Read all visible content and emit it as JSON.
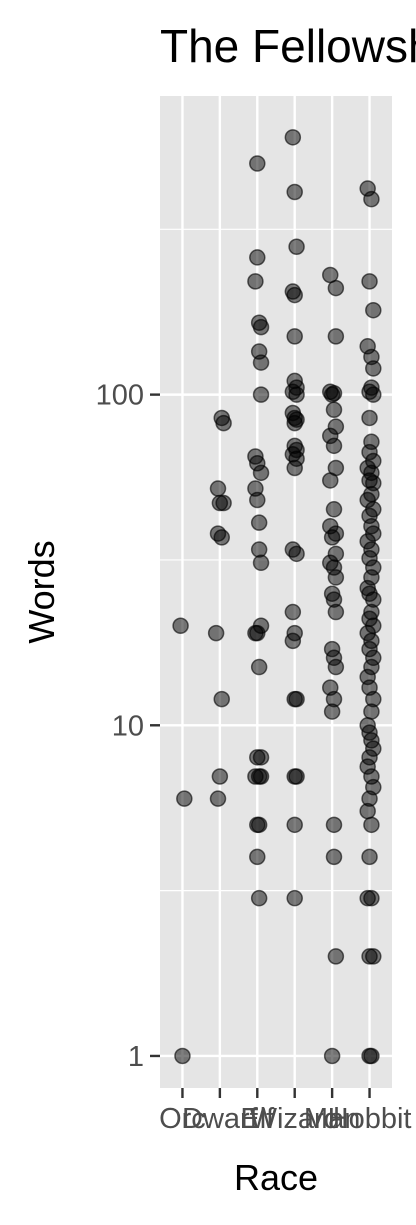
{
  "chart_data": {
    "type": "scatter",
    "title": "The Fellowship Of The Ring",
    "xlabel": "Race",
    "ylabel": "Words",
    "y_scale": "log10",
    "ylim": [
      0.8,
      800
    ],
    "y_ticks": [
      {
        "value": 1,
        "label": "1"
      },
      {
        "value": 10,
        "label": "10"
      },
      {
        "value": 100,
        "label": "100"
      }
    ],
    "categories": [
      "Orc",
      "Dwarf",
      "Elf",
      "Wizard",
      "Man",
      "Hobbit"
    ],
    "grid": true,
    "point_color": "#000000",
    "point_opacity": 0.5,
    "panel_color": "#e5e5e5",
    "series": [
      {
        "category": "Orc",
        "points": [
          {
            "x": -0.05,
            "y": 20
          },
          {
            "x": 0.05,
            "y": 6
          },
          {
            "x": 0.0,
            "y": 1
          }
        ]
      },
      {
        "category": "Dwarf",
        "points": [
          {
            "x": 0.05,
            "y": 85
          },
          {
            "x": 0.1,
            "y": 82
          },
          {
            "x": -0.05,
            "y": 52
          },
          {
            "x": 0.0,
            "y": 47
          },
          {
            "x": 0.1,
            "y": 47
          },
          {
            "x": -0.05,
            "y": 38
          },
          {
            "x": 0.05,
            "y": 37
          },
          {
            "x": -0.1,
            "y": 19
          },
          {
            "x": 0.05,
            "y": 12
          },
          {
            "x": 0.0,
            "y": 7
          },
          {
            "x": -0.05,
            "y": 6
          }
        ]
      },
      {
        "category": "Elf",
        "points": [
          {
            "x": 0.0,
            "y": 500
          },
          {
            "x": 0.0,
            "y": 260
          },
          {
            "x": -0.05,
            "y": 220
          },
          {
            "x": 0.05,
            "y": 165
          },
          {
            "x": 0.1,
            "y": 160
          },
          {
            "x": 0.05,
            "y": 135
          },
          {
            "x": 0.1,
            "y": 125
          },
          {
            "x": 0.1,
            "y": 100
          },
          {
            "x": -0.05,
            "y": 65
          },
          {
            "x": 0.0,
            "y": 62
          },
          {
            "x": 0.1,
            "y": 58
          },
          {
            "x": -0.05,
            "y": 52
          },
          {
            "x": 0.0,
            "y": 48
          },
          {
            "x": 0.05,
            "y": 41
          },
          {
            "x": 0.05,
            "y": 34
          },
          {
            "x": 0.1,
            "y": 31
          },
          {
            "x": 0.1,
            "y": 20
          },
          {
            "x": -0.05,
            "y": 19
          },
          {
            "x": 0.0,
            "y": 19
          },
          {
            "x": 0.05,
            "y": 15
          },
          {
            "x": 0.0,
            "y": 8
          },
          {
            "x": 0.1,
            "y": 8
          },
          {
            "x": -0.05,
            "y": 7
          },
          {
            "x": 0.05,
            "y": 7
          },
          {
            "x": 0.1,
            "y": 7
          },
          {
            "x": 0.0,
            "y": 5
          },
          {
            "x": 0.05,
            "y": 5
          },
          {
            "x": 0.0,
            "y": 4
          },
          {
            "x": 0.05,
            "y": 3
          }
        ]
      },
      {
        "category": "Wizard",
        "points": [
          {
            "x": -0.05,
            "y": 600
          },
          {
            "x": 0.0,
            "y": 410
          },
          {
            "x": 0.05,
            "y": 280
          },
          {
            "x": -0.05,
            "y": 205
          },
          {
            "x": 0.0,
            "y": 200
          },
          {
            "x": 0.0,
            "y": 150
          },
          {
            "x": 0.0,
            "y": 110
          },
          {
            "x": 0.05,
            "y": 105
          },
          {
            "x": -0.05,
            "y": 102
          },
          {
            "x": 0.05,
            "y": 100
          },
          {
            "x": -0.05,
            "y": 88
          },
          {
            "x": 0.0,
            "y": 85
          },
          {
            "x": 0.05,
            "y": 84
          },
          {
            "x": 0.0,
            "y": 82
          },
          {
            "x": 0.0,
            "y": 70
          },
          {
            "x": 0.05,
            "y": 68
          },
          {
            "x": -0.05,
            "y": 66
          },
          {
            "x": 0.05,
            "y": 64
          },
          {
            "x": 0.0,
            "y": 60
          },
          {
            "x": -0.05,
            "y": 34
          },
          {
            "x": 0.05,
            "y": 33
          },
          {
            "x": -0.05,
            "y": 22
          },
          {
            "x": 0.0,
            "y": 19
          },
          {
            "x": -0.05,
            "y": 18
          },
          {
            "x": 0.0,
            "y": 12
          },
          {
            "x": 0.05,
            "y": 12
          },
          {
            "x": 0.0,
            "y": 7
          },
          {
            "x": 0.05,
            "y": 7
          },
          {
            "x": 0.0,
            "y": 5
          },
          {
            "x": 0.0,
            "y": 3
          }
        ]
      },
      {
        "category": "Man",
        "points": [
          {
            "x": -0.05,
            "y": 230
          },
          {
            "x": 0.1,
            "y": 210
          },
          {
            "x": 0.1,
            "y": 150
          },
          {
            "x": -0.05,
            "y": 102
          },
          {
            "x": 0.05,
            "y": 101
          },
          {
            "x": 0.0,
            "y": 100
          },
          {
            "x": 0.05,
            "y": 90
          },
          {
            "x": 0.1,
            "y": 80
          },
          {
            "x": -0.05,
            "y": 75
          },
          {
            "x": 0.05,
            "y": 70
          },
          {
            "x": 0.1,
            "y": 60
          },
          {
            "x": -0.05,
            "y": 55
          },
          {
            "x": 0.05,
            "y": 45
          },
          {
            "x": -0.05,
            "y": 40
          },
          {
            "x": 0.1,
            "y": 38
          },
          {
            "x": 0.0,
            "y": 37
          },
          {
            "x": 0.1,
            "y": 33
          },
          {
            "x": -0.05,
            "y": 31
          },
          {
            "x": 0.05,
            "y": 30
          },
          {
            "x": 0.1,
            "y": 28
          },
          {
            "x": 0.0,
            "y": 25
          },
          {
            "x": 0.05,
            "y": 24
          },
          {
            "x": 0.1,
            "y": 22
          },
          {
            "x": 0.0,
            "y": 17
          },
          {
            "x": 0.05,
            "y": 16
          },
          {
            "x": 0.1,
            "y": 15
          },
          {
            "x": -0.05,
            "y": 13
          },
          {
            "x": 0.05,
            "y": 12
          },
          {
            "x": 0.0,
            "y": 11
          },
          {
            "x": 0.05,
            "y": 5
          },
          {
            "x": 0.05,
            "y": 4
          },
          {
            "x": 0.1,
            "y": 2
          },
          {
            "x": 0.0,
            "y": 1
          }
        ]
      },
      {
        "category": "Hobbit",
        "points": [
          {
            "x": -0.05,
            "y": 420
          },
          {
            "x": 0.05,
            "y": 390
          },
          {
            "x": 0.0,
            "y": 220
          },
          {
            "x": 0.1,
            "y": 180
          },
          {
            "x": -0.05,
            "y": 140
          },
          {
            "x": 0.05,
            "y": 130
          },
          {
            "x": 0.1,
            "y": 120
          },
          {
            "x": 0.05,
            "y": 105
          },
          {
            "x": 0.0,
            "y": 102
          },
          {
            "x": 0.1,
            "y": 100
          },
          {
            "x": 0.0,
            "y": 85
          },
          {
            "x": 0.05,
            "y": 72
          },
          {
            "x": 0.0,
            "y": 67
          },
          {
            "x": 0.1,
            "y": 63
          },
          {
            "x": -0.05,
            "y": 60
          },
          {
            "x": 0.05,
            "y": 58
          },
          {
            "x": 0.0,
            "y": 55
          },
          {
            "x": 0.1,
            "y": 54
          },
          {
            "x": 0.05,
            "y": 50
          },
          {
            "x": -0.05,
            "y": 48
          },
          {
            "x": 0.1,
            "y": 45
          },
          {
            "x": 0.0,
            "y": 43
          },
          {
            "x": 0.05,
            "y": 40
          },
          {
            "x": 0.1,
            "y": 38
          },
          {
            "x": -0.05,
            "y": 36
          },
          {
            "x": 0.05,
            "y": 34
          },
          {
            "x": 0.0,
            "y": 32
          },
          {
            "x": 0.1,
            "y": 30
          },
          {
            "x": 0.05,
            "y": 28
          },
          {
            "x": -0.05,
            "y": 26
          },
          {
            "x": 0.0,
            "y": 25
          },
          {
            "x": 0.1,
            "y": 24
          },
          {
            "x": 0.05,
            "y": 22
          },
          {
            "x": 0.0,
            "y": 21
          },
          {
            "x": 0.1,
            "y": 20
          },
          {
            "x": -0.05,
            "y": 19
          },
          {
            "x": 0.05,
            "y": 18
          },
          {
            "x": 0.0,
            "y": 17
          },
          {
            "x": 0.1,
            "y": 16
          },
          {
            "x": 0.05,
            "y": 15
          },
          {
            "x": -0.05,
            "y": 14
          },
          {
            "x": 0.0,
            "y": 13
          },
          {
            "x": 0.1,
            "y": 12
          },
          {
            "x": 0.05,
            "y": 11
          },
          {
            "x": -0.05,
            "y": 10
          },
          {
            "x": 0.0,
            "y": 9.5
          },
          {
            "x": 0.05,
            "y": 9
          },
          {
            "x": 0.1,
            "y": 8.5
          },
          {
            "x": 0.0,
            "y": 8
          },
          {
            "x": -0.05,
            "y": 7.5
          },
          {
            "x": 0.05,
            "y": 7
          },
          {
            "x": 0.1,
            "y": 6.5
          },
          {
            "x": 0.0,
            "y": 6
          },
          {
            "x": -0.05,
            "y": 5.5
          },
          {
            "x": 0.05,
            "y": 5
          },
          {
            "x": 0.0,
            "y": 4
          },
          {
            "x": 0.05,
            "y": 3
          },
          {
            "x": -0.05,
            "y": 3
          },
          {
            "x": 0.0,
            "y": 2
          },
          {
            "x": 0.1,
            "y": 2
          },
          {
            "x": 0.0,
            "y": 1
          },
          {
            "x": 0.05,
            "y": 1
          }
        ]
      }
    ]
  }
}
